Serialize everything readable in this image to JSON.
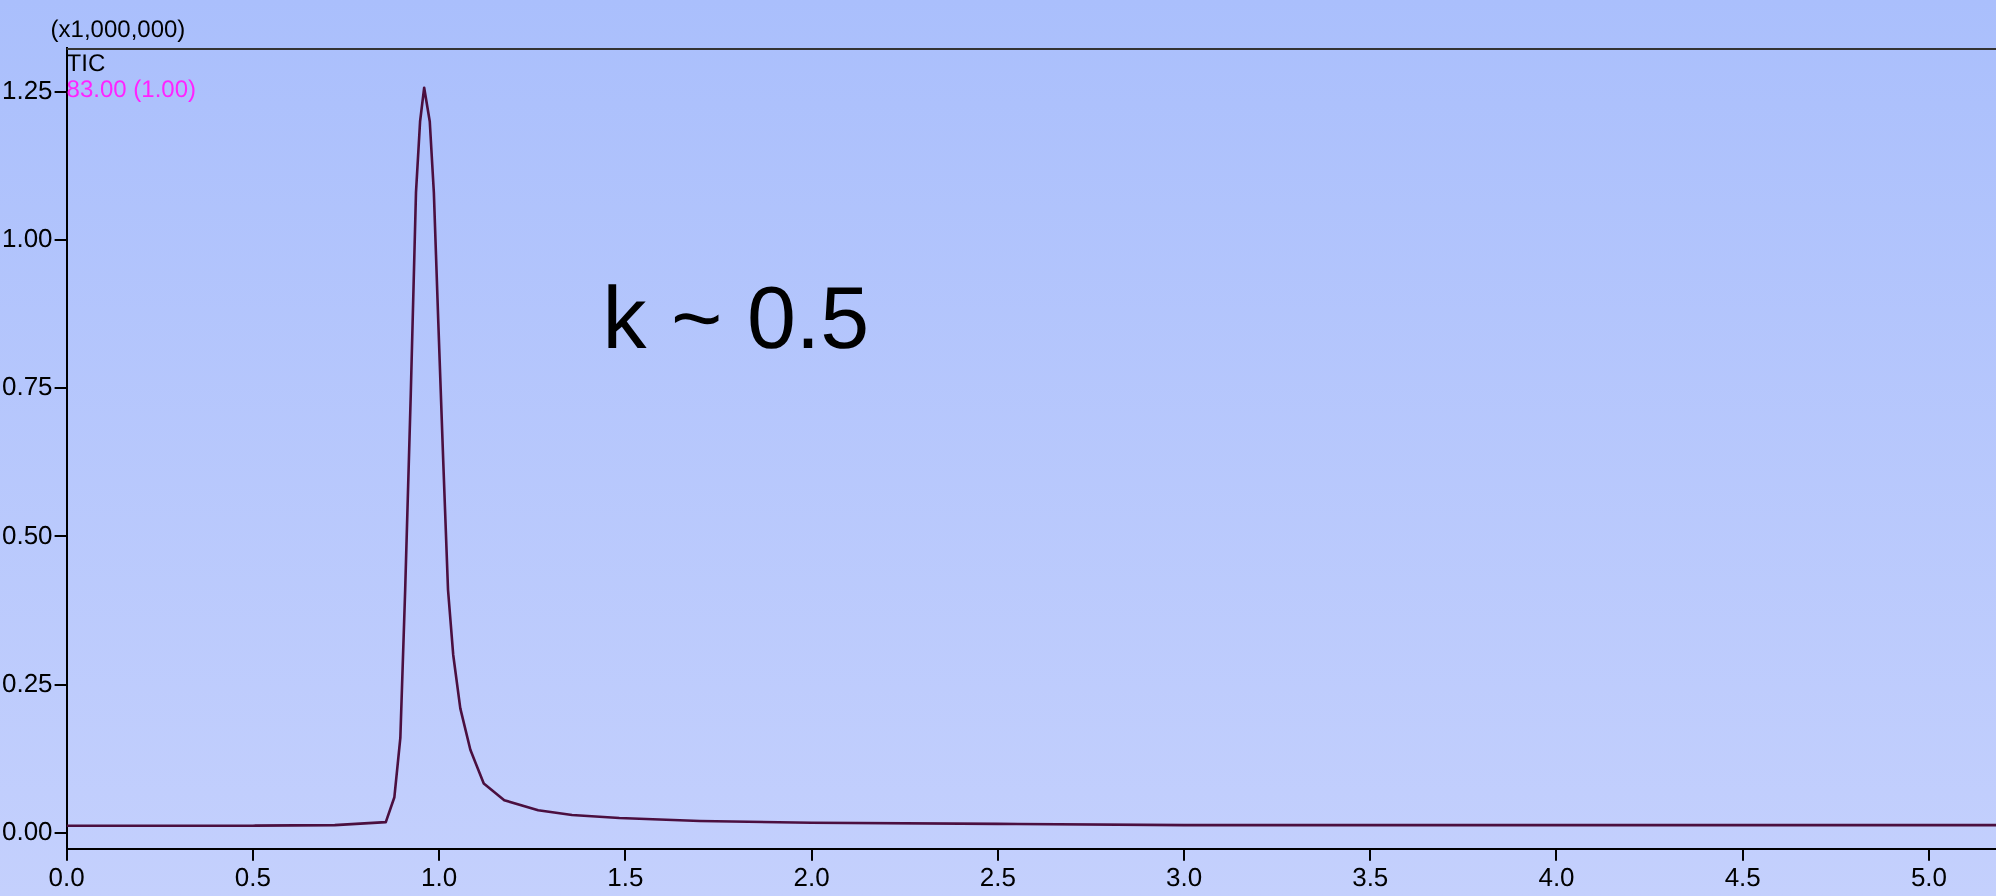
{
  "chart_data": {
    "type": "line",
    "ylabel": "(x1,000,000)",
    "annotations": [
      "TIC",
      "83.00 (1.00)",
      "k ~ 0.5"
    ],
    "x": [
      0,
      0.5,
      0.72,
      0.857,
      0.88,
      0.896,
      0.909,
      0.924,
      0.938,
      0.949,
      0.96,
      0.975,
      0.986,
      0.998,
      1.011,
      1.024,
      1.038,
      1.057,
      1.084,
      1.12,
      1.175,
      1.266,
      1.357,
      1.484,
      1.7,
      2.0,
      2.5,
      3.0,
      3.5,
      4.0,
      4.5,
      5.18
    ],
    "series": [
      {
        "color": "#4b0f3f",
        "values": [
          0.012,
          0.012,
          0.013,
          0.018,
          0.06,
          0.16,
          0.41,
          0.74,
          1.08,
          1.2,
          1.257,
          1.2,
          1.08,
          0.86,
          0.63,
          0.41,
          0.3,
          0.21,
          0.14,
          0.083,
          0.055,
          0.038,
          0.03,
          0.025,
          0.02,
          0.017,
          0.015,
          0.013,
          0.013,
          0.013,
          0.013,
          0.013
        ]
      }
    ],
    "xlim": [
      0,
      5.18
    ],
    "xticks": [
      {
        "value": 0,
        "label": "0.0"
      },
      {
        "value": 0.5,
        "label": "0.5"
      },
      {
        "value": 1,
        "label": "1.0"
      },
      {
        "value": 1.5,
        "label": "1.5"
      },
      {
        "value": 2,
        "label": "2.0"
      },
      {
        "value": 2.5,
        "label": "2.5"
      },
      {
        "value": 3,
        "label": "3.0"
      },
      {
        "value": 3.5,
        "label": "3.5"
      },
      {
        "value": 4,
        "label": "4.0"
      },
      {
        "value": 4.5,
        "label": "4.5"
      },
      {
        "value": 5,
        "label": "5.0"
      }
    ],
    "ylim": [
      -0.027,
      1.324
    ],
    "yticks": [
      {
        "value": 0,
        "label": "0.00"
      },
      {
        "value": 0.25,
        "label": "0.25"
      },
      {
        "value": 0.5,
        "label": "0.50"
      },
      {
        "value": 0.75,
        "label": "0.75"
      },
      {
        "value": 1,
        "label": "1.00"
      },
      {
        "value": 1.25,
        "label": "1.25"
      }
    ],
    "grid": false,
    "legend": false,
    "marker": "none",
    "line_style": "solid"
  }
}
